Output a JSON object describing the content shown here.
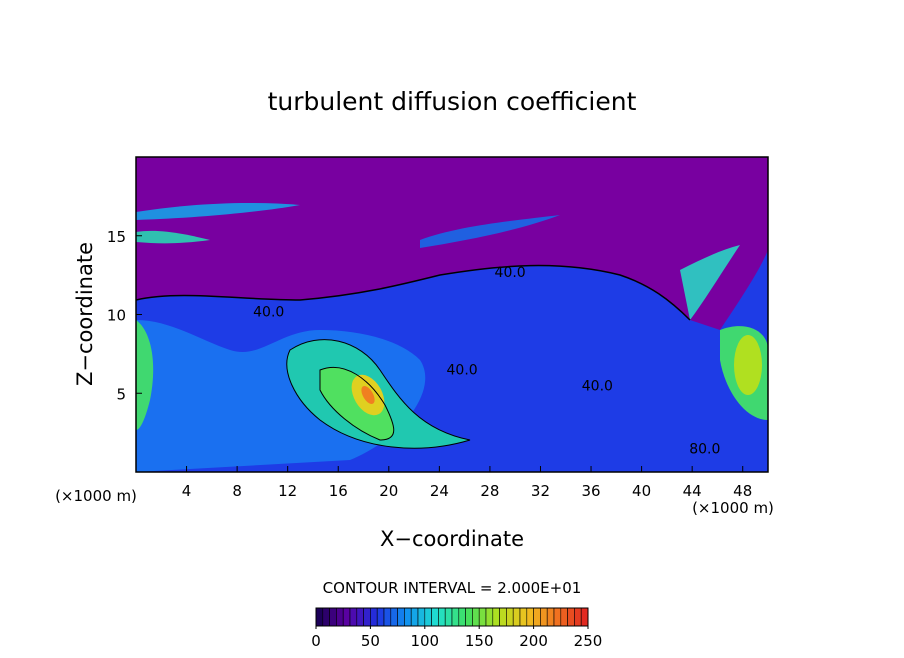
{
  "chart_data": {
    "type": "contour",
    "title": "turbulent diffusion coefficient",
    "xlabel": "X−coordinate",
    "ylabel": "Z−coordinate",
    "x_unit_label": "(×1000 m)",
    "y_unit_label": "(×1000 m)",
    "xlim": [
      0,
      50
    ],
    "xticks": [
      4,
      8,
      12,
      16,
      20,
      24,
      28,
      32,
      36,
      40,
      44,
      48
    ],
    "ylim": [
      0,
      20
    ],
    "yticks": [
      5,
      10,
      15
    ],
    "contour_interval_label": "CONTOUR INTERVAL = 2.000E+01",
    "contour_labels": [
      {
        "value": 40,
        "label": "40.0",
        "x": 10.5,
        "y": 10.2
      },
      {
        "value": 40,
        "label": "40.0",
        "x": 29.6,
        "y": 12.7
      },
      {
        "value": 40,
        "label": "40.0",
        "x": 25.8,
        "y": 6.5
      },
      {
        "value": 40,
        "label": "40.0",
        "x": 36.5,
        "y": 5.5
      },
      {
        "value": 80,
        "label": "80.0",
        "x": 45.0,
        "y": 1.5
      }
    ],
    "colorbar": {
      "clim": [
        0,
        250
      ],
      "ticks": [
        0,
        50,
        100,
        150,
        200,
        250
      ],
      "colors": [
        "#140050",
        "#5a00a0",
        "#2030e0",
        "#1090f0",
        "#20e0d0",
        "#40e060",
        "#b0e020",
        "#f0c020",
        "#f07020",
        "#e02020"
      ]
    }
  }
}
